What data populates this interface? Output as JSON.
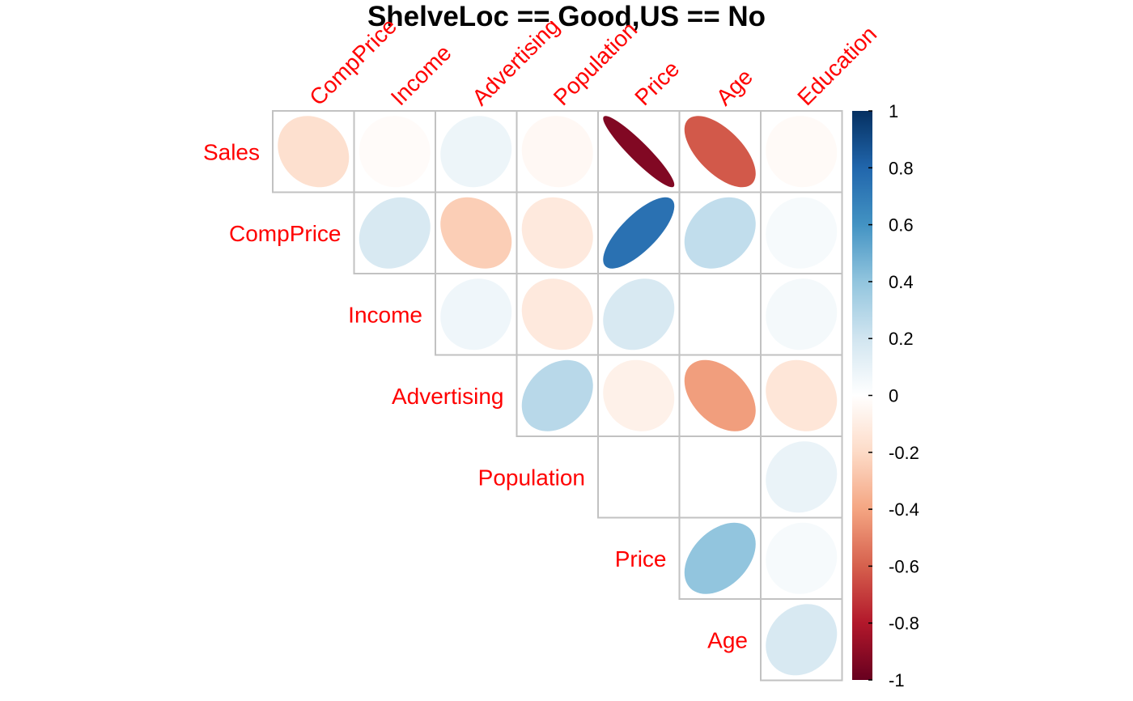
{
  "chart_data": {
    "type": "heatmap",
    "title": "ShelveLoc == Good,US == No",
    "row_labels": [
      "Sales",
      "CompPrice",
      "Income",
      "Advertising",
      "Population",
      "Price",
      "Age"
    ],
    "col_labels": [
      "CompPrice",
      "Income",
      "Advertising",
      "Population",
      "Price",
      "Age",
      "Education"
    ],
    "layout": "upper-triangle",
    "shape": "ellipse",
    "label_color": "#ff0000",
    "colorbar": {
      "range": [
        -1,
        1
      ],
      "ticks": [
        "1",
        "0.8",
        "0.6",
        "0.4",
        "0.2",
        "0",
        "-0.2",
        "-0.4",
        "-0.6",
        "-0.8",
        "-1"
      ],
      "colors": [
        "#67001F",
        "#B2182B",
        "#D6604D",
        "#F4A582",
        "#FDDBC7",
        "#FFFFFF",
        "#D1E5F0",
        "#92C5DE",
        "#4393C3",
        "#2166AC",
        "#053061"
      ]
    },
    "values": [
      [
        -0.17,
        -0.02,
        0.08,
        -0.04,
        -0.93,
        -0.62,
        -0.03
      ],
      [
        0.17,
        -0.25,
        -0.12,
        0.75,
        0.25,
        0.04
      ],
      [
        0.07,
        -0.12,
        0.17,
        0.0,
        0.05
      ],
      [
        0.28,
        -0.08,
        -0.42,
        -0.14
      ],
      [
        0.0,
        0.0,
        0.09
      ],
      [
        0.4,
        0.04
      ],
      [
        0.17
      ]
    ]
  }
}
